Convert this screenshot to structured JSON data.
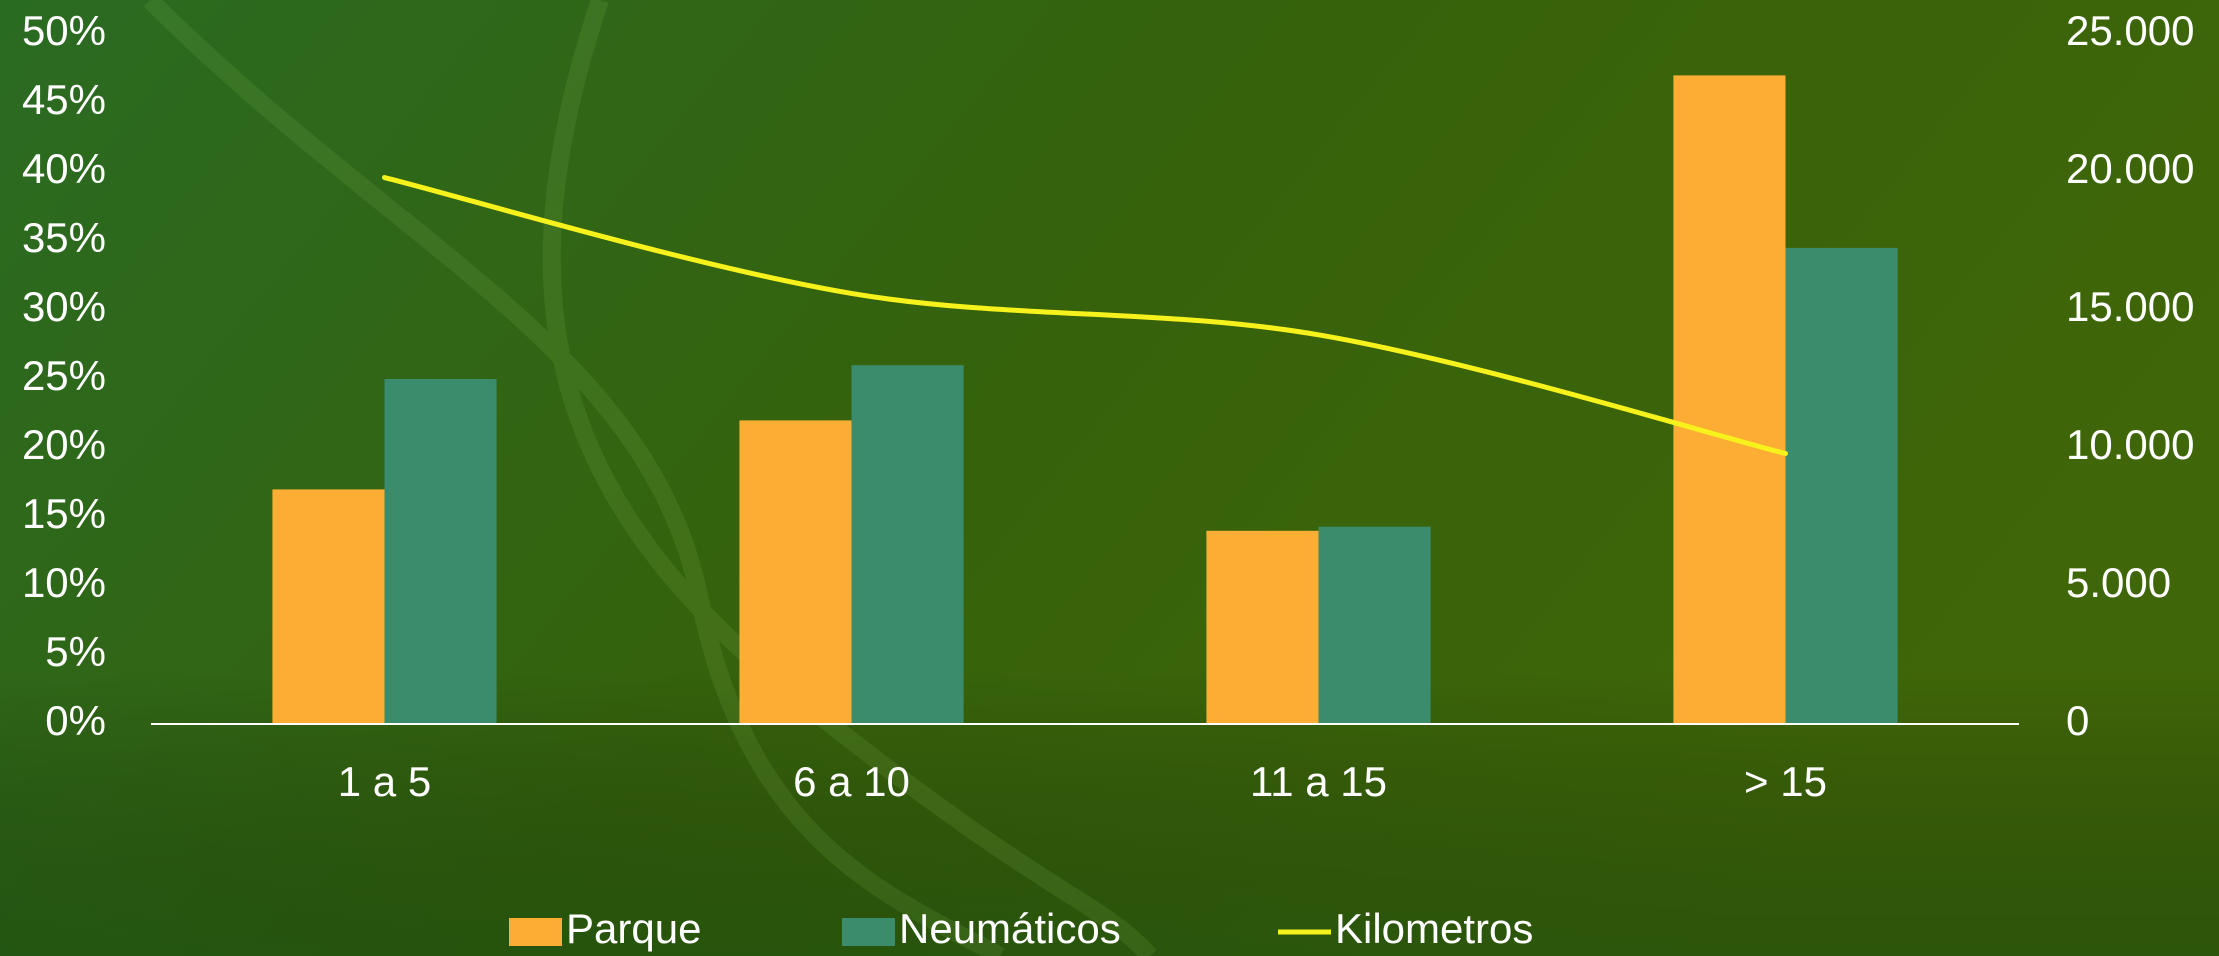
{
  "chart_data": {
    "type": "bar",
    "categories": [
      "1 a 5",
      "6 a 10",
      "11 a 15",
      "> 15"
    ],
    "series": [
      {
        "name": "Parque",
        "color": "#fbae33",
        "values": [
          17,
          22,
          14,
          47
        ]
      },
      {
        "name": "Neumáticos",
        "color": "#3a8c6c",
        "values": [
          25,
          26,
          14.3,
          34.5
        ]
      },
      {
        "name": "Kilometros",
        "type": "line",
        "axis": "y2",
        "color": "#f7f21c",
        "values": [
          19800,
          15600,
          14100,
          9800
        ]
      }
    ],
    "ylim": [
      0,
      50
    ],
    "yticks": [
      {
        "value": 0,
        "label": "0%"
      },
      {
        "value": 5,
        "label": "5%"
      },
      {
        "value": 10,
        "label": "10%"
      },
      {
        "value": 15,
        "label": "15%"
      },
      {
        "value": 20,
        "label": "20%"
      },
      {
        "value": 25,
        "label": "25%"
      },
      {
        "value": 30,
        "label": "30%"
      },
      {
        "value": 35,
        "label": "35%"
      },
      {
        "value": 40,
        "label": "40%"
      },
      {
        "value": 45,
        "label": "45%"
      },
      {
        "value": 50,
        "label": "50%"
      }
    ],
    "y2lim": [
      0,
      25000
    ],
    "y2ticks": [
      0,
      {
        "value": 5000,
        "label": "5.000"
      },
      {
        "value": 10000,
        "label": "10.000"
      },
      {
        "value": 15000,
        "label": "15.000"
      },
      {
        "value": 20000,
        "label": "20.000"
      },
      {
        "value": 25000,
        "label": "25.000"
      }
    ],
    "grid": false,
    "legend": "bottom"
  }
}
